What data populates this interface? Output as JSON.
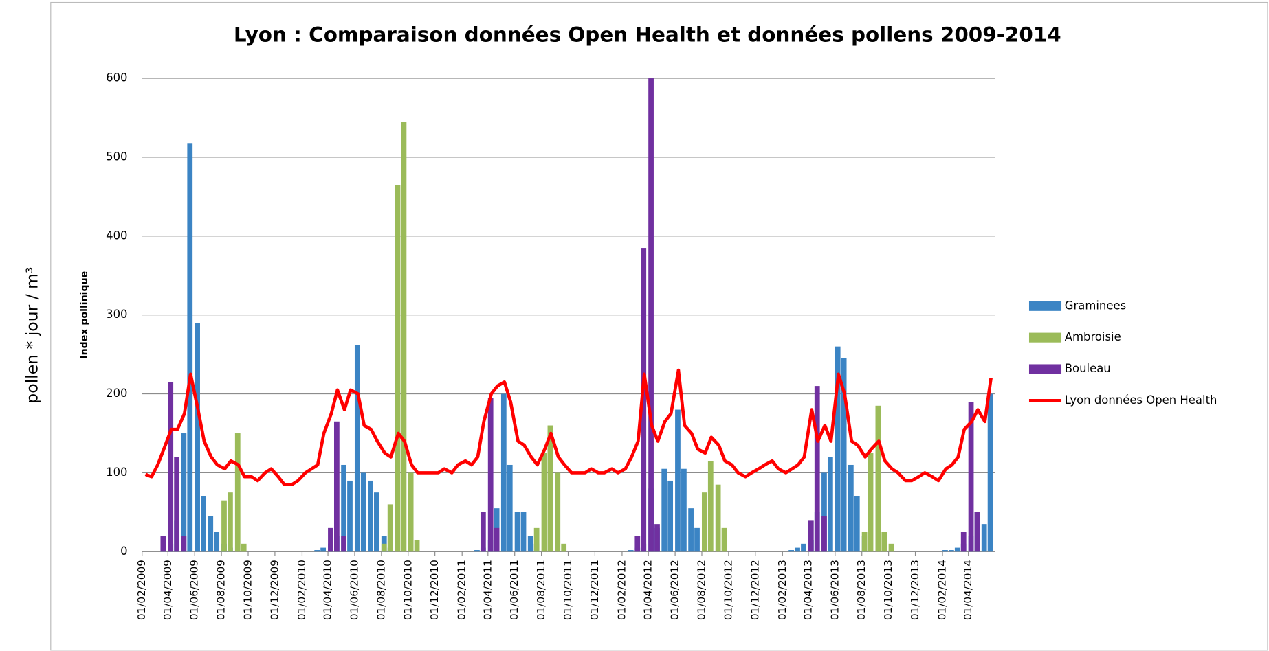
{
  "chart_data": {
    "type": "bar",
    "title": "Lyon : Comparaison données Open Health et données pollens 2009-2014",
    "y_label": "Index pollinique",
    "outer_label": "pollen * jour / m³",
    "xlim": [
      "01/02/2009",
      "01/06/2014"
    ],
    "ylim": [
      0,
      600
    ],
    "yticks": [
      0,
      100,
      200,
      300,
      400,
      500,
      600
    ],
    "grid": true,
    "legend": "right",
    "xticks": [
      "01/02/2009",
      "01/04/2009",
      "01/06/2009",
      "01/08/2009",
      "01/10/2009",
      "01/12/2009",
      "01/02/2010",
      "01/04/2010",
      "01/06/2010",
      "01/08/2010",
      "01/10/2010",
      "01/12/2010",
      "01/02/2011",
      "01/04/2011",
      "01/06/2011",
      "01/08/2011",
      "01/10/2011",
      "01/12/2011",
      "01/02/2012",
      "01/04/2012",
      "01/06/2012",
      "01/08/2012",
      "01/10/2012",
      "01/12/2012",
      "01/02/2013",
      "01/04/2013",
      "01/06/2013",
      "01/08/2013",
      "01/10/2013",
      "01/12/2013",
      "01/02/2014",
      "01/04/2014"
    ],
    "x": [
      "01/02/2009",
      "15/02/2009",
      "01/03/2009",
      "15/03/2009",
      "01/04/2009",
      "15/04/2009",
      "01/05/2009",
      "15/05/2009",
      "01/06/2009",
      "15/06/2009",
      "01/07/2009",
      "15/07/2009",
      "01/08/2009",
      "15/08/2009",
      "01/09/2009",
      "15/09/2009",
      "01/10/2009",
      "15/10/2009",
      "01/11/2009",
      "15/11/2009",
      "01/12/2009",
      "15/12/2009",
      "01/01/2010",
      "15/01/2010",
      "01/02/2010",
      "15/02/2010",
      "01/03/2010",
      "15/03/2010",
      "01/04/2010",
      "15/04/2010",
      "01/05/2010",
      "15/05/2010",
      "01/06/2010",
      "15/06/2010",
      "01/07/2010",
      "15/07/2010",
      "01/08/2010",
      "15/08/2010",
      "01/09/2010",
      "15/09/2010",
      "01/10/2010",
      "15/10/2010",
      "01/11/2010",
      "15/11/2010",
      "01/12/2010",
      "15/12/2010",
      "01/01/2011",
      "15/01/2011",
      "01/02/2011",
      "15/02/2011",
      "01/03/2011",
      "15/03/2011",
      "01/04/2011",
      "15/04/2011",
      "01/05/2011",
      "15/05/2011",
      "01/06/2011",
      "15/06/2011",
      "01/07/2011",
      "15/07/2011",
      "01/08/2011",
      "15/08/2011",
      "01/09/2011",
      "15/09/2011",
      "01/10/2011",
      "15/10/2011",
      "01/11/2011",
      "15/11/2011",
      "01/12/2011",
      "15/12/2011",
      "01/01/2012",
      "15/01/2012",
      "01/02/2012",
      "15/02/2012",
      "01/03/2012",
      "15/03/2012",
      "01/04/2012",
      "15/04/2012",
      "01/05/2012",
      "15/05/2012",
      "01/06/2012",
      "15/06/2012",
      "01/07/2012",
      "15/07/2012",
      "01/08/2012",
      "15/08/2012",
      "01/09/2012",
      "15/09/2012",
      "01/10/2012",
      "15/10/2012",
      "01/11/2012",
      "15/11/2012",
      "01/12/2012",
      "15/12/2012",
      "01/01/2013",
      "15/01/2013",
      "01/02/2013",
      "15/02/2013",
      "01/03/2013",
      "15/03/2013",
      "01/04/2013",
      "15/04/2013",
      "01/05/2013",
      "15/05/2013",
      "01/06/2013",
      "15/06/2013",
      "01/07/2013",
      "15/07/2013",
      "01/08/2013",
      "15/08/2013",
      "01/09/2013",
      "15/09/2013",
      "01/10/2013",
      "15/10/2013",
      "01/11/2013",
      "15/11/2013",
      "01/12/2013",
      "15/12/2013",
      "01/01/2014",
      "15/01/2014",
      "01/02/2014",
      "15/02/2014",
      "01/03/2014",
      "15/03/2014",
      "01/04/2014",
      "15/04/2014",
      "01/05/2014",
      "15/05/2014"
    ],
    "series": [
      {
        "name": "Graminees",
        "color": "#3b84c4",
        "type": "bar",
        "values": [
          0,
          0,
          0,
          5,
          10,
          40,
          150,
          518,
          290,
          70,
          45,
          25,
          10,
          5,
          0,
          0,
          0,
          0,
          0,
          0,
          0,
          0,
          0,
          0,
          0,
          0,
          2,
          5,
          10,
          20,
          110,
          90,
          262,
          100,
          90,
          75,
          20,
          5,
          0,
          0,
          0,
          0,
          0,
          0,
          0,
          0,
          0,
          0,
          0,
          0,
          2,
          5,
          15,
          55,
          200,
          110,
          50,
          50,
          20,
          10,
          0,
          0,
          0,
          0,
          0,
          0,
          0,
          0,
          0,
          0,
          0,
          0,
          0,
          2,
          5,
          10,
          80,
          30,
          105,
          90,
          180,
          105,
          55,
          30,
          0,
          0,
          0,
          0,
          0,
          0,
          0,
          0,
          0,
          0,
          0,
          0,
          0,
          2,
          5,
          10,
          15,
          50,
          100,
          120,
          260,
          245,
          110,
          70,
          20,
          0,
          0,
          0,
          0,
          0,
          0,
          0,
          0,
          0,
          0,
          0,
          2,
          2,
          5,
          10,
          20,
          50,
          35,
          200
        ]
      },
      {
        "name": "Ambroisie",
        "color": "#9bbb59",
        "type": "bar",
        "values": [
          0,
          0,
          0,
          0,
          0,
          0,
          0,
          0,
          0,
          0,
          0,
          0,
          65,
          75,
          150,
          10,
          0,
          0,
          0,
          0,
          0,
          0,
          0,
          0,
          0,
          0,
          0,
          0,
          0,
          0,
          0,
          0,
          0,
          0,
          0,
          0,
          10,
          60,
          465,
          545,
          100,
          15,
          0,
          0,
          0,
          0,
          0,
          0,
          0,
          0,
          0,
          0,
          0,
          0,
          0,
          0,
          0,
          0,
          0,
          30,
          125,
          160,
          100,
          10,
          0,
          0,
          0,
          0,
          0,
          0,
          0,
          0,
          0,
          0,
          0,
          0,
          0,
          0,
          0,
          0,
          0,
          0,
          0,
          0,
          75,
          115,
          85,
          30,
          0,
          0,
          0,
          0,
          0,
          0,
          0,
          0,
          0,
          0,
          0,
          0,
          0,
          0,
          0,
          0,
          0,
          0,
          0,
          0,
          25,
          125,
          185,
          25,
          10,
          0,
          0,
          0,
          0,
          0,
          0,
          0,
          0,
          0,
          0,
          0,
          0,
          0,
          0,
          0
        ]
      },
      {
        "name": "Bouleau",
        "color": "#7030a0",
        "type": "bar",
        "values": [
          0,
          0,
          0,
          20,
          215,
          120,
          20,
          0,
          0,
          0,
          0,
          0,
          0,
          0,
          0,
          0,
          0,
          0,
          0,
          0,
          0,
          0,
          0,
          0,
          0,
          0,
          0,
          0,
          30,
          165,
          20,
          0,
          0,
          0,
          0,
          0,
          0,
          0,
          0,
          0,
          0,
          0,
          0,
          0,
          0,
          0,
          0,
          0,
          0,
          0,
          0,
          50,
          195,
          30,
          0,
          0,
          0,
          0,
          0,
          0,
          0,
          0,
          0,
          0,
          0,
          0,
          0,
          0,
          0,
          0,
          0,
          0,
          0,
          0,
          20,
          385,
          600,
          35,
          0,
          0,
          0,
          0,
          0,
          0,
          0,
          0,
          0,
          0,
          0,
          0,
          0,
          0,
          0,
          0,
          0,
          0,
          0,
          0,
          0,
          0,
          40,
          210,
          45,
          0,
          0,
          0,
          0,
          0,
          0,
          0,
          0,
          0,
          0,
          0,
          0,
          0,
          0,
          0,
          0,
          0,
          0,
          0,
          0,
          25,
          190,
          50,
          0,
          0
        ]
      },
      {
        "name": "Lyon données Open Health",
        "color": "#ff0000",
        "type": "line",
        "values": [
          98,
          95,
          110,
          130,
          155,
          155,
          175,
          225,
          180,
          140,
          120,
          110,
          105,
          115,
          110,
          95,
          95,
          90,
          100,
          105,
          95,
          85,
          85,
          90,
          100,
          105,
          110,
          150,
          175,
          205,
          180,
          205,
          200,
          160,
          155,
          140,
          125,
          120,
          150,
          140,
          110,
          100,
          100,
          100,
          100,
          105,
          100,
          110,
          115,
          110,
          120,
          165,
          200,
          210,
          215,
          190,
          140,
          135,
          120,
          110,
          130,
          150,
          120,
          110,
          100,
          100,
          100,
          105,
          100,
          100,
          105,
          100,
          105,
          120,
          140,
          225,
          160,
          140,
          165,
          175,
          230,
          160,
          150,
          130,
          125,
          145,
          135,
          115,
          110,
          100,
          95,
          100,
          105,
          110,
          115,
          105,
          100,
          105,
          110,
          120,
          180,
          140,
          160,
          140,
          225,
          200,
          140,
          135,
          120,
          130,
          140,
          115,
          105,
          100,
          90,
          90,
          95,
          100,
          95,
          90,
          105,
          110,
          120,
          155,
          165,
          180,
          165,
          220
        ]
      }
    ]
  }
}
